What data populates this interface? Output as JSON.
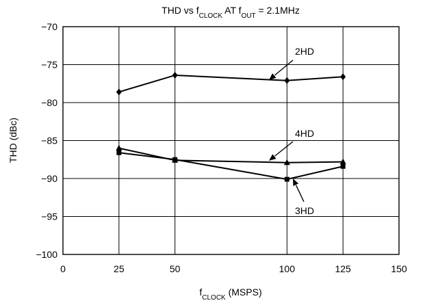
{
  "chart_data": {
    "type": "line",
    "title": {
      "parts": [
        {
          "text": "THD vs f",
          "sub": false
        },
        {
          "text": "CLOCK",
          "sub": true
        },
        {
          "text": " AT f",
          "sub": false
        },
        {
          "text": "OUT",
          "sub": true
        },
        {
          "text": " = 2.1MHz",
          "sub": false
        }
      ]
    },
    "xlabel": {
      "parts": [
        {
          "text": "f",
          "sub": false
        },
        {
          "text": "CLOCK",
          "sub": true
        },
        {
          "text": " (MSPS)",
          "sub": false
        }
      ]
    },
    "ylabel": "THD (dBc)",
    "xlim": [
      0,
      150
    ],
    "ylim": [
      -100,
      -70
    ],
    "xticks": [
      0,
      25,
      50,
      100,
      125,
      150
    ],
    "xtick_labels": [
      "0",
      "25",
      "50",
      "100",
      "125",
      "150"
    ],
    "xtick_positions": [
      0,
      1,
      2,
      4,
      5,
      6
    ],
    "yticks": [
      -70,
      -75,
      -80,
      -85,
      -90,
      -95,
      -100
    ],
    "ytick_labels": [
      "−70",
      "−75",
      "−80",
      "−85",
      "−90",
      "−95",
      "−100"
    ],
    "grid": true,
    "x": [
      25,
      50,
      100,
      125
    ],
    "series": [
      {
        "name": "2HD",
        "marker": "diamond",
        "values": [
          -78.6,
          -76.4,
          -77.1,
          -76.6
        ]
      },
      {
        "name": "4HD",
        "marker": "triangle",
        "values": [
          -86.0,
          -87.6,
          -87.9,
          -87.8
        ]
      },
      {
        "name": "3HD",
        "marker": "square",
        "values": [
          -86.6,
          -87.5,
          -90.1,
          -88.4
        ]
      }
    ]
  }
}
